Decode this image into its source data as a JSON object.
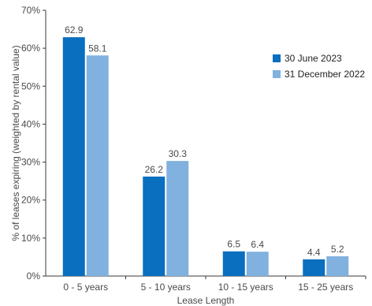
{
  "chart_data": {
    "type": "bar",
    "xlabel": "Lease Length",
    "ylabel": "% of leases expiring (weighted by rental value)",
    "ylim": [
      0,
      70
    ],
    "yticks": [
      0,
      10,
      20,
      30,
      40,
      50,
      60,
      70
    ],
    "ytick_suffix": "%",
    "grid": false,
    "legend_position": "right",
    "categories": [
      "0 - 5 years",
      "5 - 10 years",
      "10 - 15 years",
      "15 - 25 years"
    ],
    "series": [
      {
        "name": "30 June 2023",
        "color": "#0a6fbf",
        "values": [
          62.9,
          26.2,
          6.5,
          4.4
        ]
      },
      {
        "name": "31 December 2022",
        "color": "#80b1df",
        "values": [
          58.1,
          30.3,
          6.4,
          5.2
        ]
      }
    ]
  }
}
